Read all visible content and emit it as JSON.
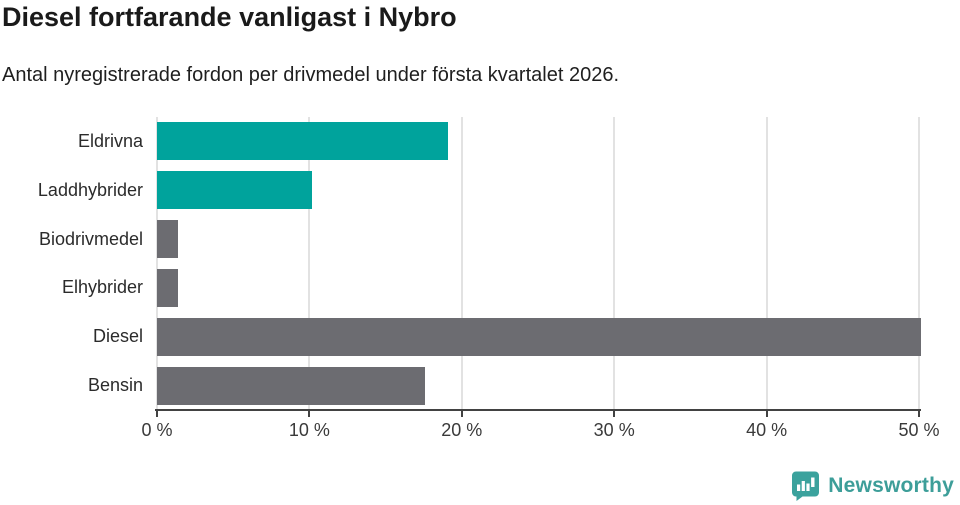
{
  "header": {
    "title": "Diesel fortfarande vanligast i Nybro",
    "subtitle": "Antal nyregistrerade fordon per drivmedel under första kvartalet 2026."
  },
  "chart_data": {
    "type": "bar",
    "orientation": "horizontal",
    "title": "Diesel fortfarande vanligast i Nybro",
    "subtitle": "Antal nyregistrerade fordon per drivmedel under första kvartalet 2026.",
    "categories": [
      "Eldrivna",
      "Laddhybrider",
      "Biodrivmedel",
      "Elhybrider",
      "Diesel",
      "Bensin"
    ],
    "values": [
      19.1,
      10.2,
      1.4,
      1.4,
      50.1,
      17.6
    ],
    "unit": "%",
    "bar_colors": [
      "#00a39c",
      "#00a39c",
      "#6c6c71",
      "#6c6c71",
      "#6c6c71",
      "#6c6c71"
    ],
    "xlim": [
      0,
      50
    ],
    "x_ticks": [
      {
        "value": 0,
        "label": "0 %"
      },
      {
        "value": 10,
        "label": "10 %"
      },
      {
        "value": 20,
        "label": "20 %"
      },
      {
        "value": 30,
        "label": "30 %"
      },
      {
        "value": 40,
        "label": "40 %"
      },
      {
        "value": 50,
        "label": "50 %"
      }
    ],
    "grid": true,
    "gridline_color": "#e2e2e2",
    "axis_color": "#424242",
    "legend_position": "none"
  },
  "footer": {
    "brand_label": "Newsworthy",
    "brand_color": "#3d9e99",
    "logo_icon": "bar-chart-speech-bubble-icon"
  }
}
